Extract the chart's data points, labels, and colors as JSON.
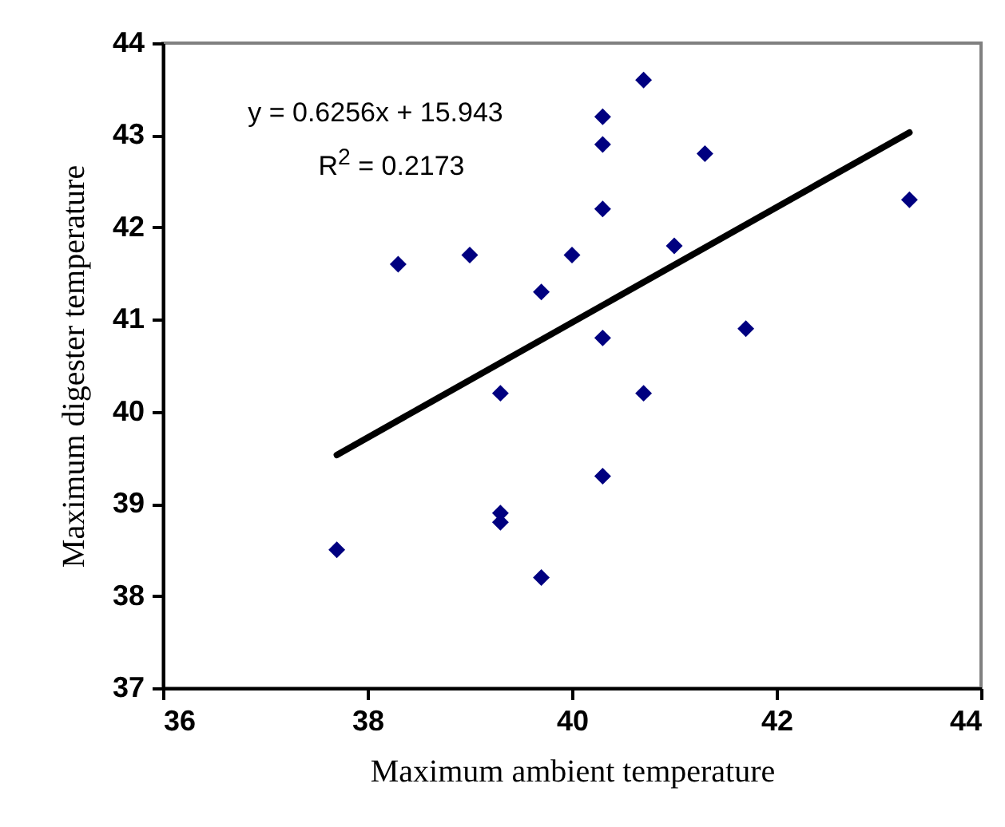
{
  "chart_data": {
    "type": "scatter",
    "xlabel": "Maximum ambient temperature",
    "ylabel": "Maximum digester temperature",
    "annotations": [
      "y = 0.6256x + 15.943",
      "R$^{2}$ = 0.2173"
    ],
    "xlim": [
      36,
      44
    ],
    "xticks": [
      36,
      38,
      40,
      42,
      44
    ],
    "ylim": [
      37,
      44
    ],
    "yticks": [
      37,
      38,
      39,
      40,
      41,
      42,
      43,
      44
    ],
    "grid": false,
    "series": [
      {
        "color": "#000080",
        "marker": "diamond",
        "x": [
          37.7,
          38.3,
          39.0,
          39.7,
          39.3,
          39.3,
          39.3,
          39.7,
          40.3,
          40.7,
          40.3,
          41.3,
          40.3,
          40.0,
          41.0,
          40.3,
          41.7,
          40.7,
          40.3,
          43.3
        ],
        "values": [
          38.5,
          41.6,
          41.7,
          41.3,
          40.2,
          38.9,
          38.8,
          38.2,
          43.2,
          43.6,
          42.9,
          42.8,
          42.2,
          41.7,
          41.8,
          40.8,
          40.9,
          40.2,
          39.3,
          42.3
        ]
      },
      {
        "type": "line",
        "color": "#000000",
        "line_style": "solid",
        "marker": "none",
        "x": [
          37.7,
          43.3
        ],
        "values": [
          39.53,
          43.03
        ]
      }
    ]
  }
}
